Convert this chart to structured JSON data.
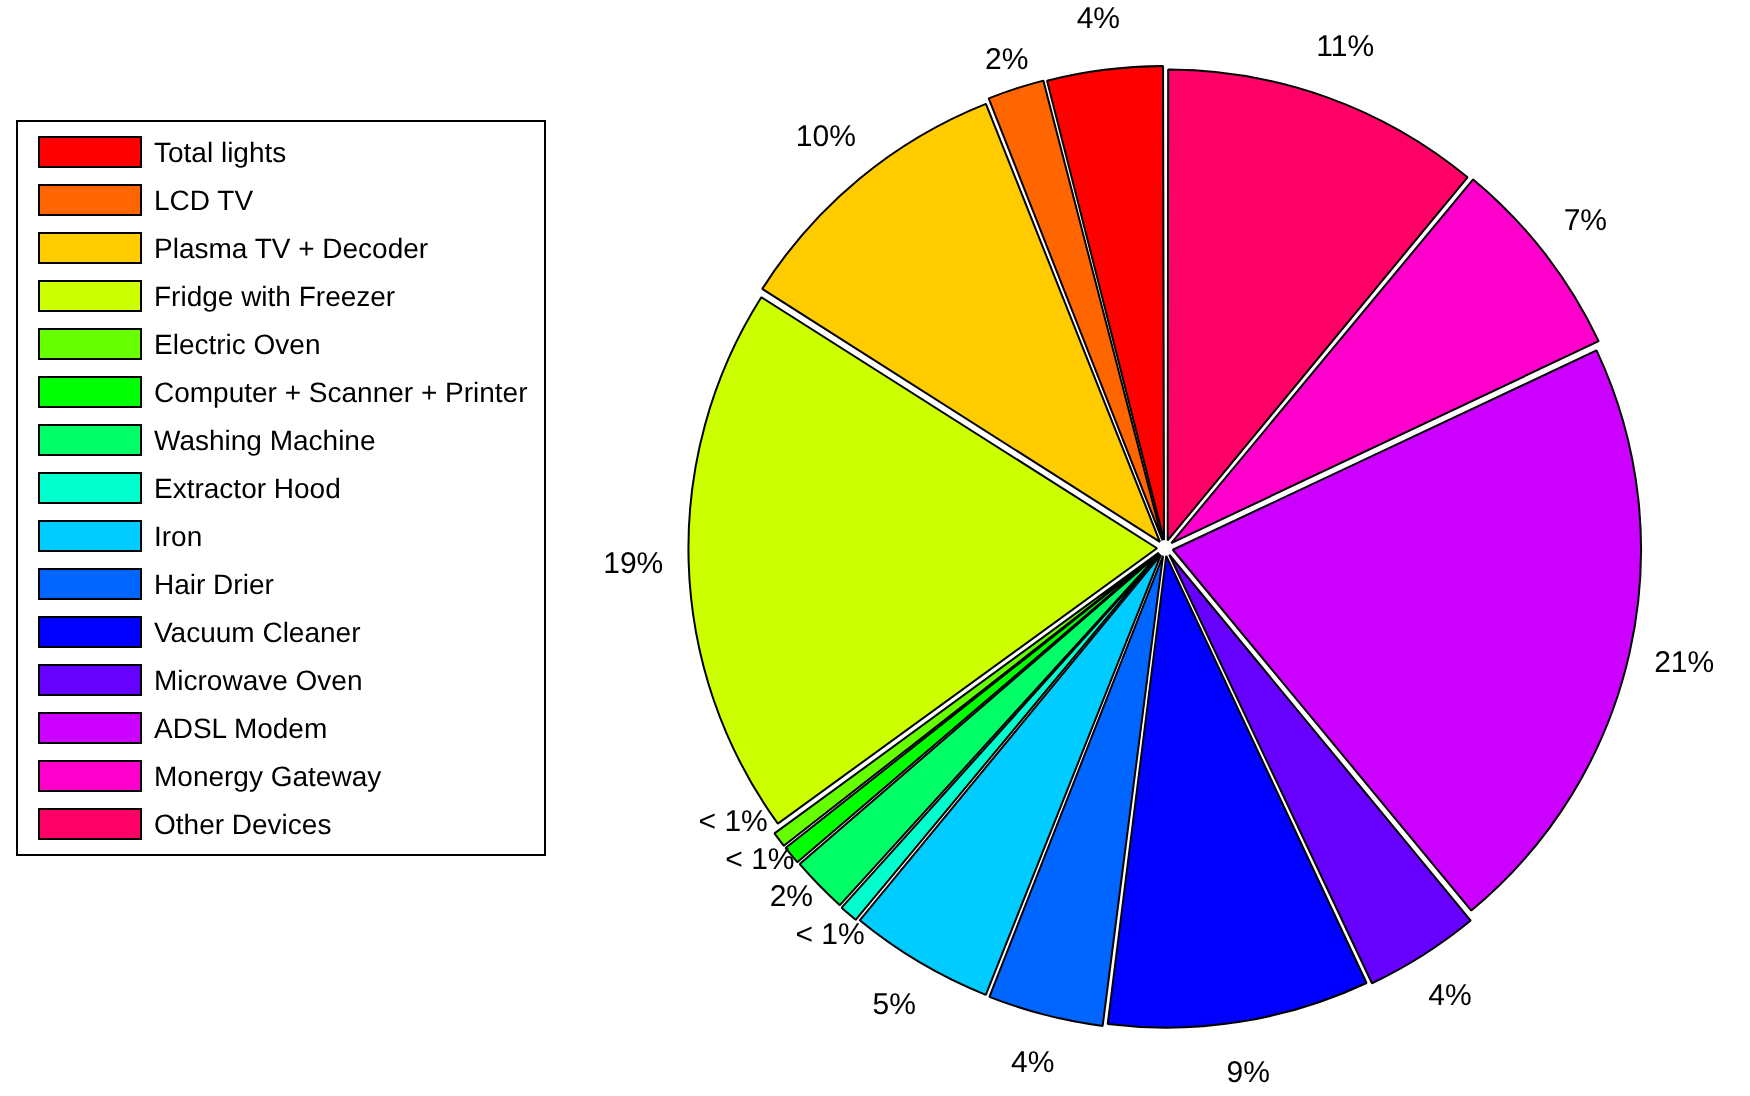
{
  "chart_data": {
    "type": "pie",
    "categories": [
      "Total lights",
      "LCD TV",
      "Plasma TV + Decoder",
      "Fridge with Freezer",
      "Electric Oven",
      "Computer + Scanner + Printer",
      "Washing Machine",
      "Extractor Hood",
      "Iron",
      "Hair Drier",
      "Vacuum Cleaner",
      "Microwave Oven",
      "ADSL Modem",
      "Monergy Gateway",
      "Other Devices"
    ],
    "values": [
      4,
      2,
      10,
      19,
      0.6,
      0.7,
      2,
      0.7,
      5,
      4,
      9,
      4,
      21,
      7,
      11
    ],
    "value_labels": [
      "4%",
      "2%",
      "10%",
      "19%",
      "< 1%",
      "< 1%",
      "2%",
      "< 1%",
      "5%",
      "4%",
      "9%",
      "4%",
      "21%",
      "7%",
      "11%"
    ],
    "colors": [
      "#ff0000",
      "#ff6600",
      "#ffcc00",
      "#ccff00",
      "#66ff00",
      "#00ff00",
      "#00ff66",
      "#00ffcc",
      "#00ccff",
      "#0066ff",
      "#0000ff",
      "#6600ff",
      "#cc00ff",
      "#ff00cc",
      "#ff0066"
    ],
    "legend": "left"
  }
}
